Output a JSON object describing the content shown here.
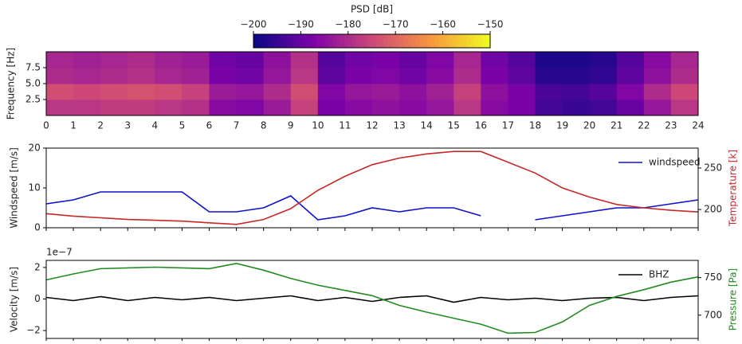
{
  "chart_data": [
    {
      "type": "heatmap",
      "ylabel": "Frequency [Hz]",
      "colorbar": {
        "label": "PSD [dB]",
        "lim": [
          -200,
          -150
        ],
        "colormap": "plasma",
        "ticks": [
          {
            "value": -200,
            "label": "−200"
          },
          {
            "value": -190,
            "label": "−190"
          },
          {
            "value": -180,
            "label": "−180"
          },
          {
            "value": -170,
            "label": "−170"
          },
          {
            "value": -160,
            "label": "−160"
          },
          {
            "value": -150,
            "label": "−150"
          }
        ]
      },
      "x": [
        0,
        1,
        2,
        3,
        4,
        5,
        6,
        7,
        8,
        9,
        10,
        11,
        12,
        13,
        14,
        15,
        16,
        17,
        18,
        19,
        20,
        21,
        22,
        23
      ],
      "y": [
        0,
        2.5,
        5,
        7.5
      ],
      "values": [
        [
          -178,
          -178,
          -177,
          -177,
          -178,
          -179,
          -186,
          -187,
          -183,
          -176,
          -188,
          -186,
          -185,
          -186,
          -184,
          -178,
          -186,
          -188,
          -194,
          -195,
          -194,
          -190,
          -184,
          -178
        ],
        [
          -174,
          -175,
          -174,
          -173,
          -174,
          -176,
          -183,
          -184,
          -180,
          -174,
          -187,
          -184,
          -183,
          -185,
          -182,
          -176,
          -185,
          -188,
          -193,
          -194,
          -192,
          -187,
          -180,
          -175
        ],
        [
          -180,
          -181,
          -180,
          -179,
          -181,
          -182,
          -188,
          -189,
          -184,
          -178,
          -191,
          -188,
          -187,
          -189,
          -186,
          -180,
          -188,
          -191,
          -197,
          -197,
          -196,
          -191,
          -185,
          -180
        ],
        [
          -181,
          -182,
          -181,
          -180,
          -182,
          -183,
          -189,
          -190,
          -185,
          -179,
          -192,
          -189,
          -188,
          -190,
          -187,
          -181,
          -189,
          -192,
          -198,
          -198,
          -197,
          -192,
          -186,
          -181
        ]
      ],
      "xlim": [
        0,
        24
      ],
      "xticks": [
        0,
        1,
        2,
        3,
        4,
        5,
        6,
        7,
        8,
        9,
        10,
        11,
        12,
        13,
        14,
        15,
        16,
        17,
        18,
        19,
        20,
        21,
        22,
        23,
        24
      ],
      "ylim": [
        0,
        10
      ],
      "yticks": [
        2.5,
        {
          "value": 5,
          "label": "5.0"
        },
        7.5
      ]
    },
    {
      "type": "line",
      "ylabel": "Windspeed [m/s]",
      "y2label": "Temperature [k]",
      "legend": "upper right",
      "x": [
        0,
        1,
        2,
        3,
        4,
        5,
        6,
        7,
        8,
        9,
        10,
        11,
        12,
        13,
        14,
        15,
        16,
        17,
        18,
        19,
        20,
        21,
        22,
        23,
        24
      ],
      "series": [
        {
          "name": "windspeed",
          "color": "#1010cc",
          "values": [
            6,
            7,
            9,
            9,
            9,
            9,
            4,
            4,
            5,
            8,
            2,
            3,
            5,
            4,
            5,
            5,
            3,
            null,
            2,
            3,
            4,
            5,
            5,
            6,
            7
          ]
        },
        {
          "color": "#c62828",
          "axis": "y2",
          "values": [
            195,
            192,
            190,
            188,
            187,
            186,
            184,
            182,
            188,
            201,
            223,
            240,
            254,
            262,
            267,
            270,
            270,
            257,
            244,
            226,
            215,
            206,
            202,
            199,
            197
          ]
        }
      ],
      "xlim": [
        0,
        24
      ],
      "ylim": [
        0,
        20
      ],
      "yticks": [
        0,
        10,
        20
      ],
      "y2lim": [
        178,
        274
      ],
      "y2ticks": [
        200,
        250
      ]
    },
    {
      "type": "line",
      "ylabel": "Velocity [m/s]",
      "y2label": "Pressure [Pa]",
      "offset_text": "1e−7",
      "legend": "upper right",
      "x": [
        0,
        1,
        2,
        3,
        4,
        5,
        6,
        7,
        8,
        9,
        10,
        11,
        12,
        13,
        14,
        15,
        16,
        17,
        18,
        19,
        20,
        21,
        22,
        23,
        24
      ],
      "series": [
        {
          "name": "BHZ",
          "color": "#000000",
          "values": [
            0.1,
            -0.1,
            0.15,
            -0.1,
            0.1,
            -0.05,
            0.1,
            -0.1,
            0.05,
            0.2,
            -0.1,
            0.1,
            -0.15,
            0.1,
            0.2,
            -0.2,
            0.1,
            -0.05,
            0.05,
            -0.1,
            0.05,
            0.1,
            -0.1,
            0.1,
            0.2
          ]
        },
        {
          "color": "#228b22",
          "axis": "y2",
          "values": [
            747,
            755,
            762,
            763,
            764,
            763,
            762,
            769,
            760,
            749,
            740,
            733,
            726,
            713,
            704,
            696,
            688,
            676,
            677,
            691,
            713,
            725,
            734,
            744,
            751
          ]
        }
      ],
      "xlim": [
        0,
        24
      ],
      "ylim": [
        -2.5,
        2.45
      ],
      "yticks": [
        {
          "value": -2,
          "label": "−2"
        },
        0,
        2
      ],
      "y2lim": [
        669,
        773
      ],
      "y2ticks": [
        700,
        750
      ]
    }
  ]
}
